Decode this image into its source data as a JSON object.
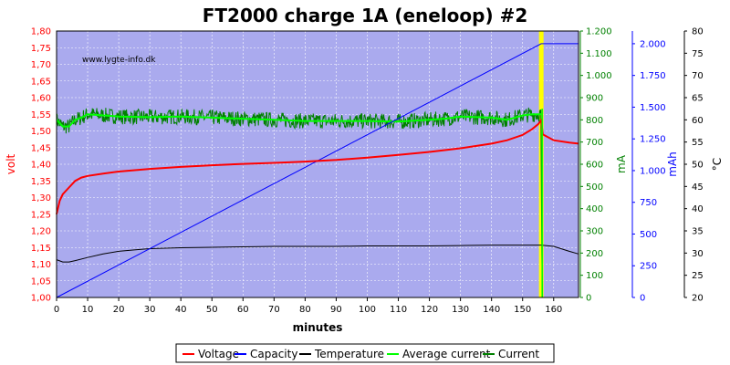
{
  "chart_data": {
    "type": "line",
    "title": "FT2000 charge 1A (eneloop) #2",
    "watermark": "www.lygte-info.dk",
    "xlabel": "minutes",
    "xlim": [
      0,
      168
    ],
    "x_ticks": [
      "0",
      "10",
      "20",
      "30",
      "40",
      "50",
      "60",
      "70",
      "80",
      "90",
      "100",
      "110",
      "120",
      "130",
      "140",
      "150",
      "160"
    ],
    "axes": {
      "volt": {
        "label": "volt",
        "color": "#ff0000",
        "lim": [
          1.0,
          1.8
        ],
        "ticks": [
          "1,00",
          "1,05",
          "1,10",
          "1,15",
          "1,20",
          "1,25",
          "1,30",
          "1,35",
          "1,40",
          "1,45",
          "1,50",
          "1,55",
          "1,60",
          "1,65",
          "1,70",
          "1,75",
          "1,80"
        ]
      },
      "mA": {
        "label": "mA",
        "color": "#008000",
        "lim": [
          0,
          1200
        ],
        "ticks": [
          "0",
          "100",
          "200",
          "300",
          "400",
          "500",
          "600",
          "700",
          "800",
          "900",
          "1.000",
          "1.100",
          "1.200"
        ]
      },
      "mAh": {
        "label": "mAh",
        "color": "#0000ff",
        "lim": [
          0,
          2100
        ],
        "ticks": [
          "0",
          "250",
          "500",
          "750",
          "1.000",
          "1.250",
          "1.500",
          "1.750",
          "2.000"
        ]
      },
      "temp": {
        "label": "°C",
        "color": "#000000",
        "lim": [
          20,
          80
        ],
        "ticks": [
          "20",
          "25",
          "30",
          "35",
          "40",
          "45",
          "50",
          "55",
          "60",
          "65",
          "70",
          "75",
          "80"
        ]
      }
    },
    "series": [
      {
        "name": "Voltage",
        "axis": "volt",
        "color": "#ff0000",
        "x": [
          0,
          1,
          2,
          4,
          6,
          8,
          10,
          15,
          20,
          30,
          40,
          50,
          60,
          70,
          80,
          90,
          100,
          110,
          120,
          130,
          140,
          145,
          150,
          153,
          155,
          156,
          156.5,
          160,
          165,
          168
        ],
        "y": [
          1.25,
          1.29,
          1.31,
          1.33,
          1.35,
          1.36,
          1.365,
          1.372,
          1.378,
          1.386,
          1.392,
          1.397,
          1.401,
          1.404,
          1.408,
          1.413,
          1.42,
          1.428,
          1.437,
          1.448,
          1.462,
          1.472,
          1.488,
          1.505,
          1.52,
          1.532,
          1.49,
          1.472,
          1.465,
          1.462
        ]
      },
      {
        "name": "Capacity",
        "axis": "mAh",
        "color": "#0000ff",
        "x": [
          0,
          156,
          168
        ],
        "y": [
          0,
          2000,
          2000
        ]
      },
      {
        "name": "Temperature",
        "axis": "temp",
        "color": "#000000",
        "x": [
          0,
          2,
          4,
          6,
          10,
          15,
          20,
          25,
          30,
          40,
          50,
          60,
          70,
          80,
          90,
          100,
          110,
          120,
          130,
          140,
          150,
          156,
          160,
          165,
          168
        ],
        "y": [
          28.5,
          28,
          28,
          28.3,
          29,
          29.8,
          30.4,
          30.7,
          31,
          31.2,
          31.3,
          31.4,
          31.5,
          31.5,
          31.5,
          31.6,
          31.6,
          31.6,
          31.7,
          31.8,
          31.8,
          31.8,
          31.5,
          30.4,
          29.8
        ]
      },
      {
        "name": "Average current",
        "axis": "mA",
        "color": "#00ff00",
        "x": [
          0,
          2,
          4,
          6,
          8,
          10,
          20,
          30,
          40,
          50,
          60,
          70,
          80,
          90,
          100,
          110,
          120,
          125,
          130,
          140,
          145,
          150,
          153,
          156
        ],
        "y": [
          800,
          770,
          770,
          800,
          810,
          825,
          815,
          812,
          815,
          810,
          805,
          800,
          795,
          795,
          795,
          792,
          800,
          805,
          815,
          810,
          800,
          820,
          825,
          825
        ]
      },
      {
        "name": "Current",
        "axis": "mA",
        "color": "#008000",
        "x": [
          0,
          2,
          4,
          6,
          8,
          10,
          20,
          30,
          40,
          50,
          60,
          70,
          80,
          90,
          100,
          110,
          120,
          125,
          130,
          140,
          145,
          150,
          153,
          156,
          156.5,
          157,
          168
        ],
        "y": [
          800,
          770,
          770,
          800,
          810,
          825,
          815,
          812,
          815,
          810,
          805,
          800,
          795,
          795,
          795,
          792,
          800,
          805,
          815,
          810,
          800,
          820,
          825,
          825,
          0,
          0,
          0
        ]
      }
    ],
    "charge_end_marker": {
      "x": 156,
      "color": "#ffff00"
    },
    "background": "#aaaaee",
    "grid": true,
    "legend_position": "bottom"
  }
}
